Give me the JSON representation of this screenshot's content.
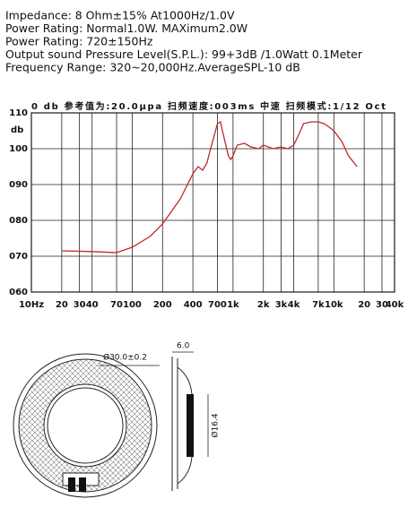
{
  "specs": [
    "Impedance: 8 Ohm±15%  At1000Hz/1.0V",
    "Power Rating: Normal1.0W. MAXimum2.0W",
    "Power Rating: 720±150Hz",
    "Output sound Pressure Level(S.P.L.): 99+3dB /1.0Watt 0.1Meter",
    "Frequency Range: 320~20,000Hz.AverageSPL-10 dB"
  ],
  "chart_data": {
    "type": "line",
    "header": "0 db  参考值为:20.0μpa  扫频速度:003ms  中速  扫频模式:1/12  Oct",
    "y_unit": "db",
    "x": [
      20,
      40,
      70,
      100,
      150,
      200,
      300,
      400,
      450,
      500,
      550,
      600,
      700,
      750,
      800,
      900,
      950,
      1000,
      1100,
      1300,
      1500,
      1800,
      2000,
      2500,
      3000,
      3500,
      4000,
      4500,
      5000,
      6000,
      7000,
      8000,
      9000,
      10000,
      12000,
      14000,
      17000
    ],
    "series": [
      {
        "name": "SPL",
        "color": "#c0282d",
        "values": [
          71.5,
          71.3,
          71.0,
          72.5,
          75.5,
          79,
          86,
          93,
          95,
          94,
          96,
          100,
          107,
          107.5,
          104,
          98,
          97,
          98,
          101,
          101.5,
          100.5,
          100,
          101,
          100,
          100.5,
          100,
          101,
          104,
          107,
          107.5,
          107.5,
          107,
          106,
          105,
          102,
          98,
          95
        ]
      }
    ],
    "xlim": [
      10,
      40000
    ],
    "ylim": [
      60,
      110
    ],
    "xlog": true,
    "grid": true,
    "xticks": [
      {
        "value": 10,
        "label": "10Hz"
      },
      20,
      30,
      40,
      70,
      100,
      200,
      400,
      700,
      {
        "value": 1000,
        "label": "1k"
      },
      {
        "value": 2000,
        "label": "2k"
      },
      {
        "value": 3000,
        "label": "3k"
      },
      {
        "value": 4000,
        "label": "4k"
      },
      {
        "value": 7000,
        "label": "7k"
      },
      {
        "value": 10000,
        "label": "10k"
      },
      {
        "value": 20000,
        "label": "20"
      },
      {
        "value": 30000,
        "label": "30"
      },
      {
        "value": 40000,
        "label": "40k"
      }
    ],
    "yticks": [
      {
        "value": 60,
        "label": "060"
      },
      {
        "value": 70,
        "label": "070"
      },
      {
        "value": 80,
        "label": "080"
      },
      {
        "value": 90,
        "label": "090"
      },
      100,
      110
    ]
  },
  "drawing": {
    "outer_diameter": "Ø30.0±0.2",
    "thickness": "6.0",
    "inner_diameter": "Ø16.4"
  }
}
